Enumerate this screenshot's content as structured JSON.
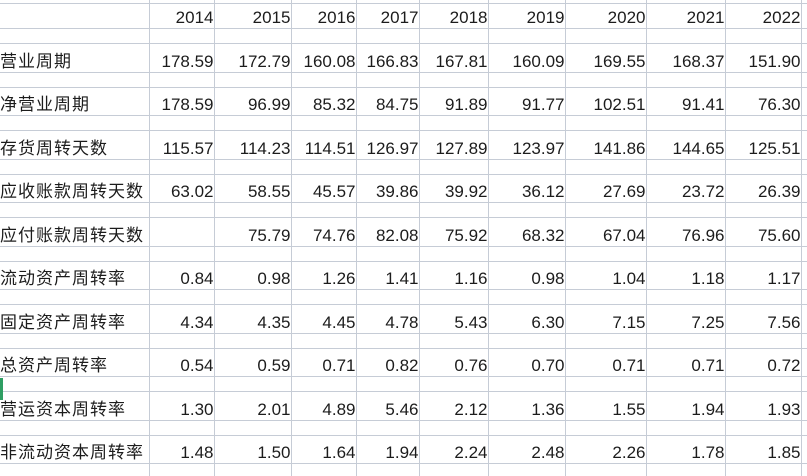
{
  "app": {
    "type": "spreadsheet-grid"
  },
  "table": {
    "years": [
      "2014",
      "2015",
      "2016",
      "2017",
      "2018",
      "2019",
      "2020",
      "2021",
      "2022"
    ],
    "rows": [
      {
        "label": "营业周期",
        "values": [
          "178.59",
          "172.79",
          "160.08",
          "166.83",
          "167.81",
          "160.09",
          "169.55",
          "168.37",
          "151.90"
        ]
      },
      {
        "label": "净营业周期",
        "values": [
          "178.59",
          "96.99",
          "85.32",
          "84.75",
          "91.89",
          "91.77",
          "102.51",
          "91.41",
          "76.30"
        ]
      },
      {
        "label": "存货周转天数",
        "values": [
          "115.57",
          "114.23",
          "114.51",
          "126.97",
          "127.89",
          "123.97",
          "141.86",
          "144.65",
          "125.51"
        ]
      },
      {
        "label": "应收账款周转天数",
        "values": [
          "63.02",
          "58.55",
          "45.57",
          "39.86",
          "39.92",
          "36.12",
          "27.69",
          "23.72",
          "26.39"
        ]
      },
      {
        "label": "应付账款周转天数",
        "values": [
          "",
          "75.79",
          "74.76",
          "82.08",
          "75.92",
          "68.32",
          "67.04",
          "76.96",
          "75.60"
        ]
      },
      {
        "label": "流动资产周转率",
        "values": [
          "0.84",
          "0.98",
          "1.26",
          "1.41",
          "1.16",
          "0.98",
          "1.04",
          "1.18",
          "1.17"
        ]
      },
      {
        "label": "固定资产周转率",
        "values": [
          "4.34",
          "4.35",
          "4.45",
          "4.78",
          "5.43",
          "6.30",
          "7.15",
          "7.25",
          "7.56"
        ]
      },
      {
        "label": "总资产周转率",
        "values": [
          "0.54",
          "0.59",
          "0.71",
          "0.82",
          "0.76",
          "0.70",
          "0.71",
          "0.71",
          "0.72"
        ]
      },
      {
        "label": "营运资本周转率",
        "values": [
          "1.30",
          "2.01",
          "4.89",
          "5.46",
          "2.12",
          "1.36",
          "1.55",
          "1.94",
          "1.93"
        ]
      },
      {
        "label": "非流动资本周转率",
        "values": [
          "1.48",
          "1.50",
          "1.64",
          "1.94",
          "2.24",
          "2.48",
          "2.26",
          "1.78",
          "1.85"
        ]
      }
    ]
  },
  "colors": {
    "gridline": "#c6ccd6",
    "text": "#1c1c1c",
    "selection_green": "#2f9e63",
    "background": "#ffffff"
  }
}
